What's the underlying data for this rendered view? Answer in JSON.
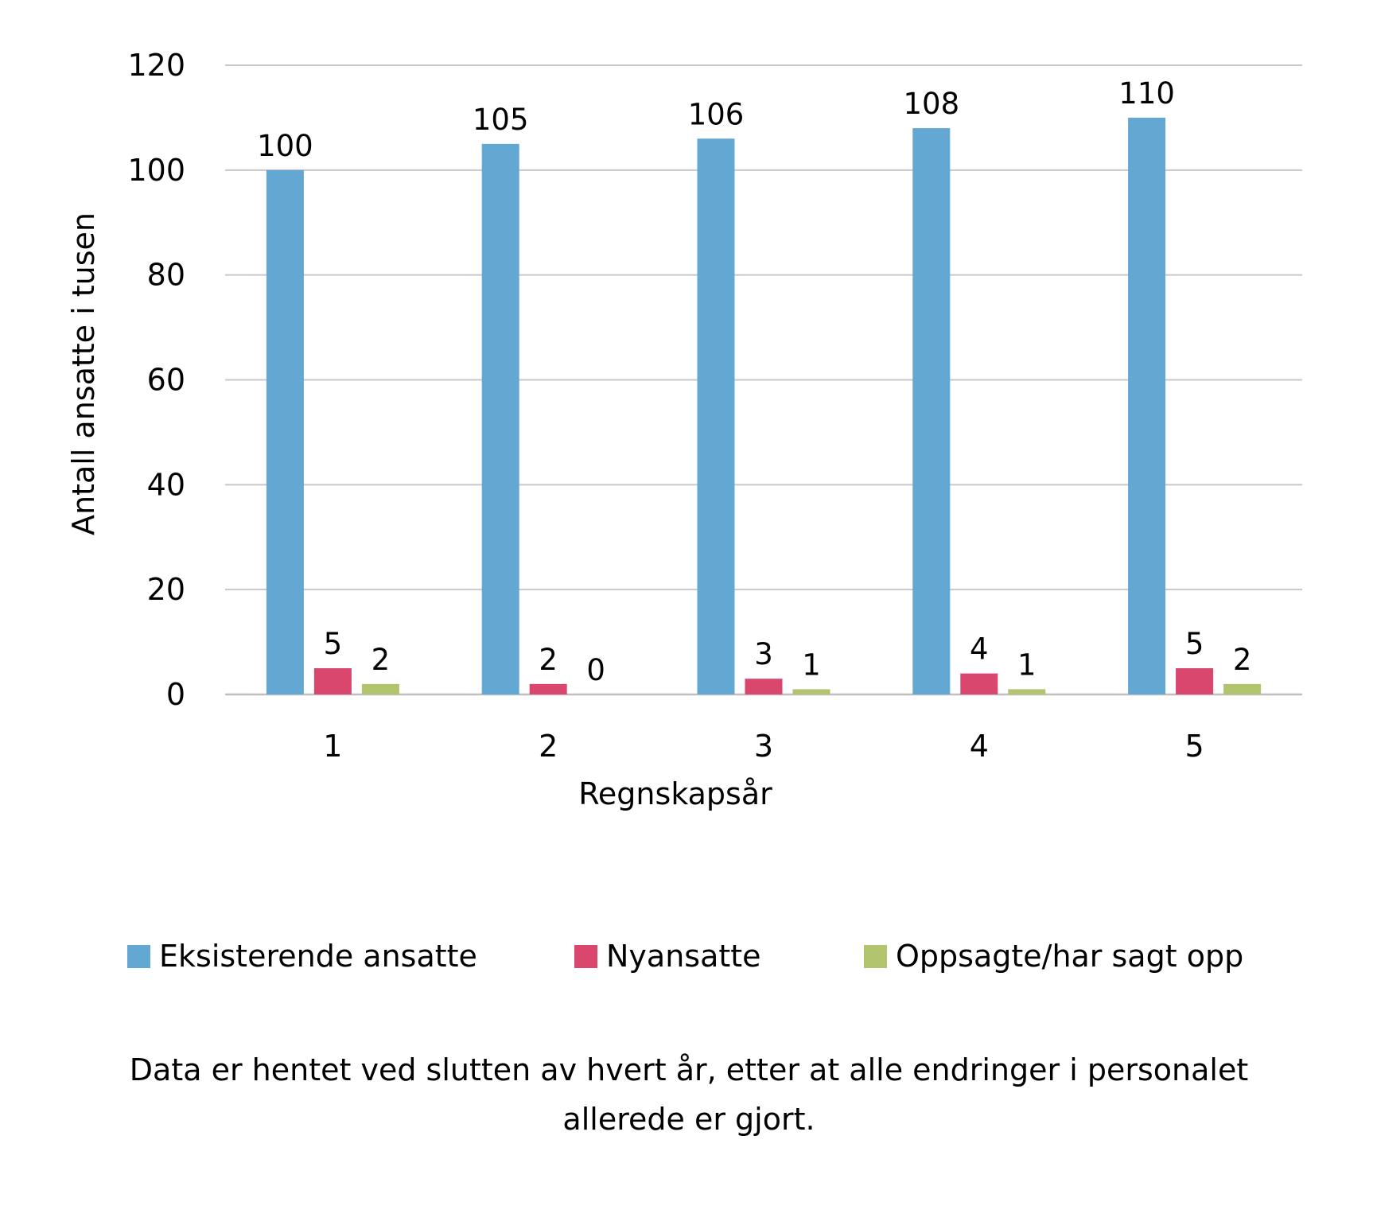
{
  "chart_data": {
    "type": "bar",
    "categories": [
      "1",
      "2",
      "3",
      "4",
      "5"
    ],
    "series": [
      {
        "name": "Eksisterende ansatte",
        "values": [
          100,
          105,
          106,
          108,
          110
        ],
        "color": "#63A8D2"
      },
      {
        "name": "Nyansatte",
        "values": [
          5,
          2,
          3,
          4,
          5
        ],
        "color": "#D9466E"
      },
      {
        "name": "Oppsagte/har sagt opp",
        "values": [
          2,
          0,
          1,
          1,
          2
        ],
        "color": "#B3C46E"
      }
    ],
    "xlabel": "Regnskapsår",
    "ylabel": "Antall ansatte i tusen",
    "ylim": [
      0,
      120
    ],
    "yticks": [
      0,
      20,
      40,
      60,
      80,
      100,
      120
    ],
    "grid": true,
    "legend_position": "bottom"
  },
  "note": {
    "line1": "Data er hentet ved slutten av hvert år, etter at alle endringer i personalet",
    "line2": "allerede er gjort."
  },
  "colors": {
    "gridline": "#C8C8C8",
    "axis": "#BFBFBF"
  }
}
